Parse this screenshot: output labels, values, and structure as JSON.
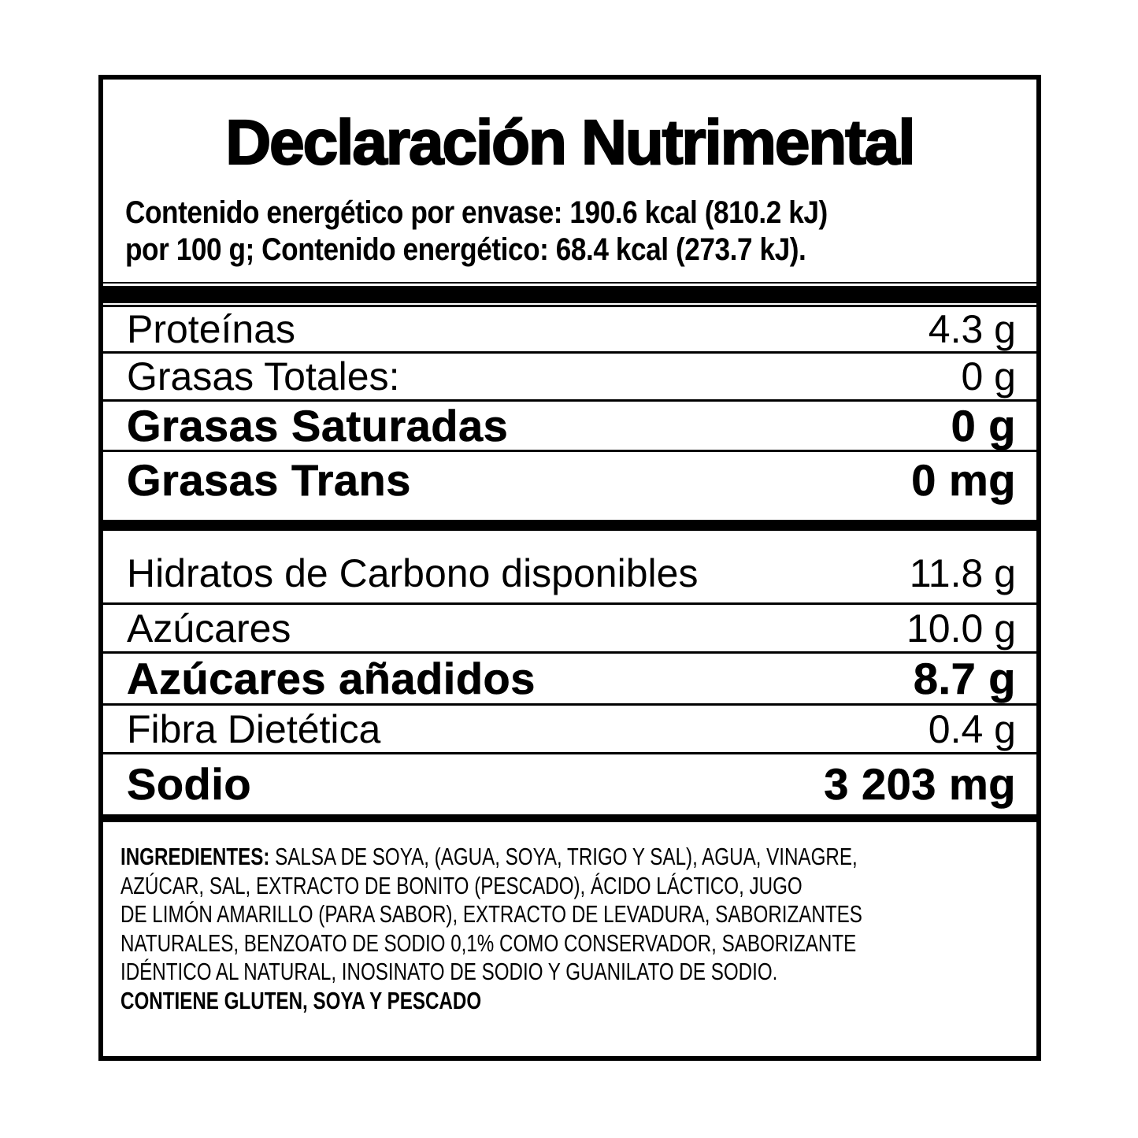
{
  "colors": {
    "ink": "#000000",
    "background": "#ffffff"
  },
  "title": "Declaración Nutrimental",
  "energy": {
    "line1": "Contenido energético por envase: 190.6 kcal (810.2 kJ)",
    "line2": "por 100 g; Contenido energético: 68.4 kcal (273.7 kJ)."
  },
  "nutrients": [
    {
      "label": "Proteínas",
      "value": "4.3 g",
      "bold": false
    },
    {
      "label": "Grasas Totales:",
      "value": "0 g",
      "bold": false
    },
    {
      "label": "Grasas Saturadas",
      "value": "0 g",
      "bold": true
    },
    {
      "label": "Grasas Trans",
      "value": "0 mg",
      "bold": true
    },
    {
      "label": "Hidratos de Carbono disponibles",
      "value": "11.8 g",
      "bold": false
    },
    {
      "label": "Azúcares",
      "value": "10.0 g",
      "bold": false
    },
    {
      "label": "Azúcares añadidos",
      "value": "8.7 g",
      "bold": true
    },
    {
      "label": "Fibra Dietética",
      "value": "0.4 g",
      "bold": false
    },
    {
      "label": "Sodio",
      "value": "3 203 mg",
      "bold": true
    }
  ],
  "ingredients": {
    "heading": "INGREDIENTES:",
    "line1_rest": "SALSA DE SOYA, (AGUA, SOYA, TRIGO Y SAL), AGUA, VINAGRE,",
    "line2": "AZÚCAR, SAL, EXTRACTO DE BONITO (PESCADO), ÁCIDO LÁCTICO, JUGO",
    "line3": "DE LIMÓN AMARILLO (PARA SABOR), EXTRACTO DE LEVADURA, SABORIZANTES",
    "line4": "NATURALES, BENZOATO DE SODIO 0,1% COMO CONSERVADOR, SABORIZANTE",
    "line5": "IDÉNTICO AL NATURAL, INOSINATO DE SODIO Y GUANILATO DE SODIO.",
    "allergens": "CONTIENE GLUTEN, SOYA Y PESCADO"
  }
}
